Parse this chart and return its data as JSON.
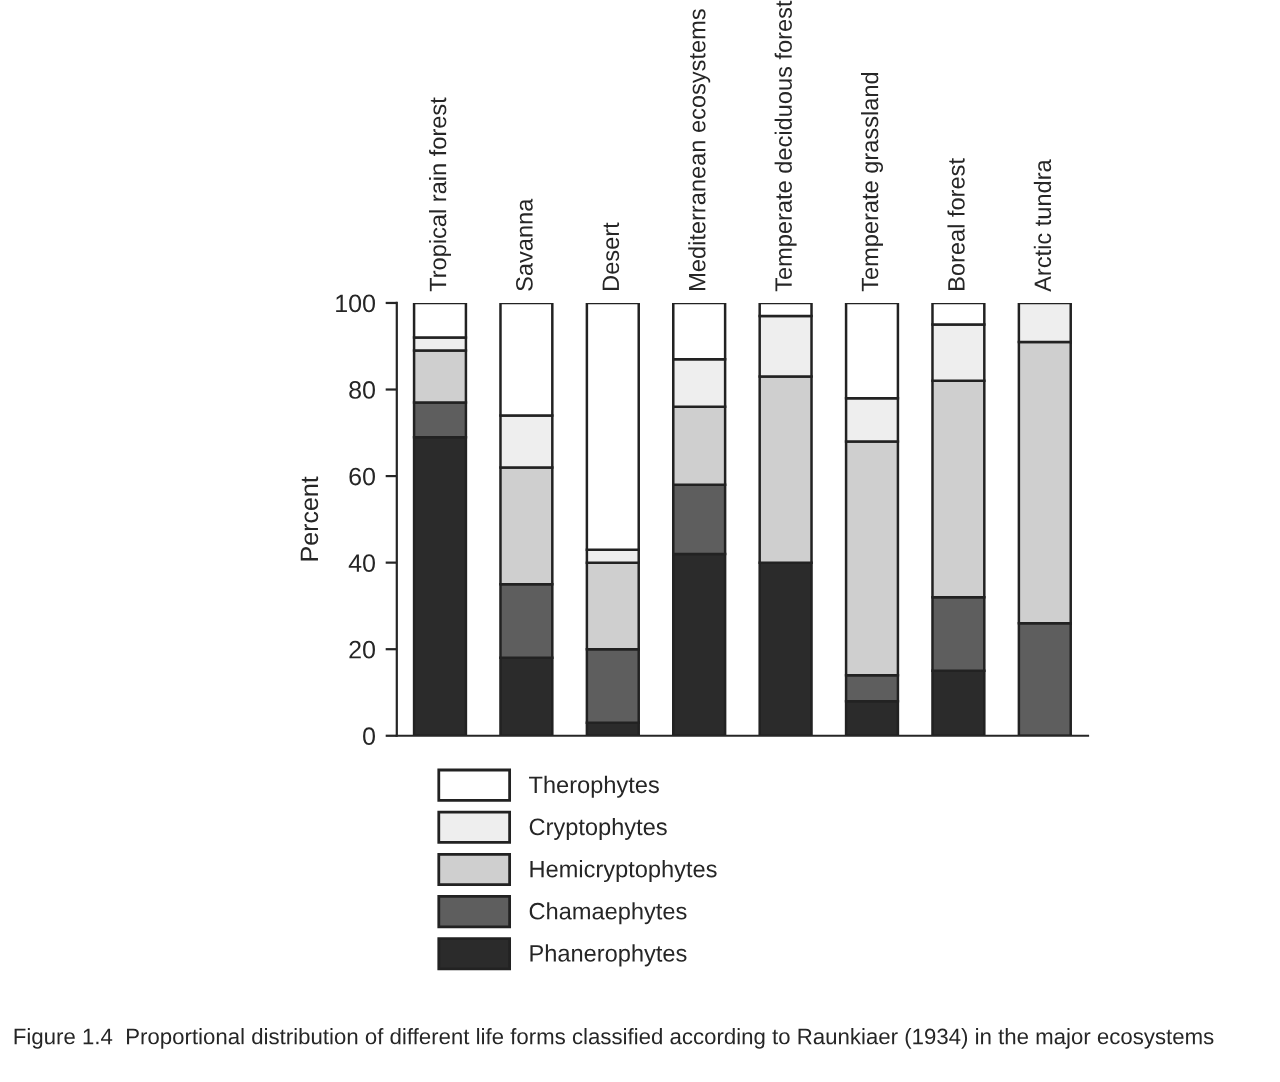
{
  "chart_data": {
    "type": "bar",
    "stacked": true,
    "ylabel": "Percent",
    "categories": [
      "Tropical rain forest",
      "Savanna",
      "Desert",
      "Mediterranean ecosystems",
      "Temperate deciduous forest",
      "Temperate grassland",
      "Boreal forest",
      "Arctic tundra"
    ],
    "series": [
      {
        "name": "Phanerophytes",
        "color": "#2b2b2b",
        "values": [
          69,
          18,
          3,
          42,
          40,
          8,
          15,
          0
        ]
      },
      {
        "name": "Chamaephytes",
        "color": "#5e5e5e",
        "values": [
          8,
          17,
          17,
          16,
          0,
          6,
          17,
          26
        ]
      },
      {
        "name": "Hemicryptophytes",
        "color": "#cfcfcf",
        "values": [
          12,
          27,
          20,
          18,
          43,
          54,
          50,
          65
        ]
      },
      {
        "name": "Cryptophytes",
        "color": "#eeeeee",
        "values": [
          3,
          12,
          3,
          11,
          14,
          10,
          13,
          9
        ]
      },
      {
        "name": "Therophytes",
        "color": "#ffffff",
        "values": [
          8,
          26,
          57,
          13,
          3,
          22,
          5,
          0
        ]
      }
    ],
    "ylim": [
      0,
      100
    ],
    "yticks": [
      0,
      20,
      40,
      60,
      80,
      100
    ],
    "grid": false,
    "legend": "bottom",
    "annotations": [
      "Figure 1.4  Proportional distribution of different life forms classified according to Raunkiaer (1934) in the major ecosystems"
    ]
  }
}
